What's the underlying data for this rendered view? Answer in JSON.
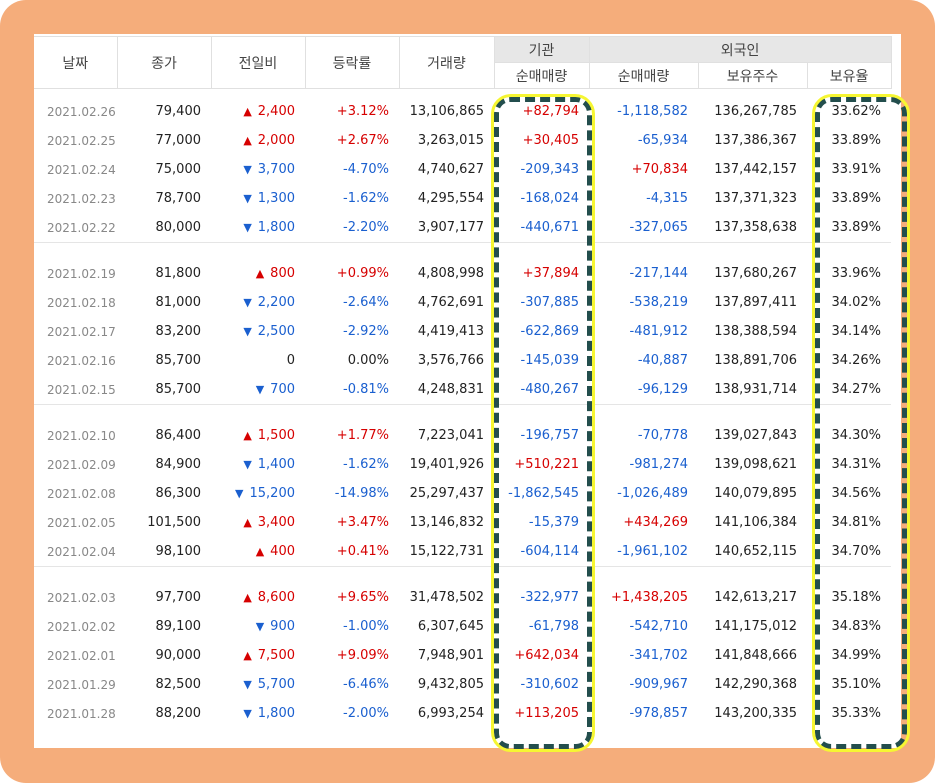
{
  "header": {
    "date": "날짜",
    "close": "종가",
    "change": "전일비",
    "rate": "등락률",
    "volume": "거래량",
    "institution": "기관",
    "foreign": "외국인",
    "inst_net": "순매매량",
    "for_net": "순매매량",
    "holdings": "보유주수",
    "hold_ratio": "보유율"
  },
  "colors": {
    "up": "#d60000",
    "down": "#1a5fcf",
    "highlight": "#f6f632",
    "highlight_dash": "#234e4d",
    "frame": "#f5ad7b"
  },
  "groups": [
    [
      {
        "date": "2021.02.26",
        "close": "79,400",
        "dir": "up",
        "change": "2,400",
        "rate": "+3.12%",
        "volume": "13,106,865",
        "inst": "+82,794",
        "foreign": "-1,118,582",
        "holdings": "136,267,785",
        "ratio": "33.62%"
      },
      {
        "date": "2021.02.25",
        "close": "77,000",
        "dir": "up",
        "change": "2,000",
        "rate": "+2.67%",
        "volume": "3,263,015",
        "inst": "+30,405",
        "foreign": "-65,934",
        "holdings": "137,386,367",
        "ratio": "33.89%"
      },
      {
        "date": "2021.02.24",
        "close": "75,000",
        "dir": "down",
        "change": "3,700",
        "rate": "-4.70%",
        "volume": "4,740,627",
        "inst": "-209,343",
        "foreign": "+70,834",
        "holdings": "137,442,157",
        "ratio": "33.91%"
      },
      {
        "date": "2021.02.23",
        "close": "78,700",
        "dir": "down",
        "change": "1,300",
        "rate": "-1.62%",
        "volume": "4,295,554",
        "inst": "-168,024",
        "foreign": "-4,315",
        "holdings": "137,371,323",
        "ratio": "33.89%"
      },
      {
        "date": "2021.02.22",
        "close": "80,000",
        "dir": "down",
        "change": "1,800",
        "rate": "-2.20%",
        "volume": "3,907,177",
        "inst": "-440,671",
        "foreign": "-327,065",
        "holdings": "137,358,638",
        "ratio": "33.89%"
      }
    ],
    [
      {
        "date": "2021.02.19",
        "close": "81,800",
        "dir": "up",
        "change": "800",
        "rate": "+0.99%",
        "volume": "4,808,998",
        "inst": "+37,894",
        "foreign": "-217,144",
        "holdings": "137,680,267",
        "ratio": "33.96%"
      },
      {
        "date": "2021.02.18",
        "close": "81,000",
        "dir": "down",
        "change": "2,200",
        "rate": "-2.64%",
        "volume": "4,762,691",
        "inst": "-307,885",
        "foreign": "-538,219",
        "holdings": "137,897,411",
        "ratio": "34.02%"
      },
      {
        "date": "2021.02.17",
        "close": "83,200",
        "dir": "down",
        "change": "2,500",
        "rate": "-2.92%",
        "volume": "4,419,413",
        "inst": "-622,869",
        "foreign": "-481,912",
        "holdings": "138,388,594",
        "ratio": "34.14%"
      },
      {
        "date": "2021.02.16",
        "close": "85,700",
        "dir": "flat",
        "change": "0",
        "rate": "0.00%",
        "volume": "3,576,766",
        "inst": "-145,039",
        "foreign": "-40,887",
        "holdings": "138,891,706",
        "ratio": "34.26%"
      },
      {
        "date": "2021.02.15",
        "close": "85,700",
        "dir": "down",
        "change": "700",
        "rate": "-0.81%",
        "volume": "4,248,831",
        "inst": "-480,267",
        "foreign": "-96,129",
        "holdings": "138,931,714",
        "ratio": "34.27%"
      }
    ],
    [
      {
        "date": "2021.02.10",
        "close": "86,400",
        "dir": "up",
        "change": "1,500",
        "rate": "+1.77%",
        "volume": "7,223,041",
        "inst": "-196,757",
        "foreign": "-70,778",
        "holdings": "139,027,843",
        "ratio": "34.30%"
      },
      {
        "date": "2021.02.09",
        "close": "84,900",
        "dir": "down",
        "change": "1,400",
        "rate": "-1.62%",
        "volume": "19,401,926",
        "inst": "+510,221",
        "foreign": "-981,274",
        "holdings": "139,098,621",
        "ratio": "34.31%"
      },
      {
        "date": "2021.02.08",
        "close": "86,300",
        "dir": "down",
        "change": "15,200",
        "rate": "-14.98%",
        "volume": "25,297,437",
        "inst": "-1,862,545",
        "foreign": "-1,026,489",
        "holdings": "140,079,895",
        "ratio": "34.56%"
      },
      {
        "date": "2021.02.05",
        "close": "101,500",
        "dir": "up",
        "change": "3,400",
        "rate": "+3.47%",
        "volume": "13,146,832",
        "inst": "-15,379",
        "foreign": "+434,269",
        "holdings": "141,106,384",
        "ratio": "34.81%"
      },
      {
        "date": "2021.02.04",
        "close": "98,100",
        "dir": "up",
        "change": "400",
        "rate": "+0.41%",
        "volume": "15,122,731",
        "inst": "-604,114",
        "foreign": "-1,961,102",
        "holdings": "140,652,115",
        "ratio": "34.70%"
      }
    ],
    [
      {
        "date": "2021.02.03",
        "close": "97,700",
        "dir": "up",
        "change": "8,600",
        "rate": "+9.65%",
        "volume": "31,478,502",
        "inst": "-322,977",
        "foreign": "+1,438,205",
        "holdings": "142,613,217",
        "ratio": "35.18%"
      },
      {
        "date": "2021.02.02",
        "close": "89,100",
        "dir": "down",
        "change": "900",
        "rate": "-1.00%",
        "volume": "6,307,645",
        "inst": "-61,798",
        "foreign": "-542,710",
        "holdings": "141,175,012",
        "ratio": "34.83%"
      },
      {
        "date": "2021.02.01",
        "close": "90,000",
        "dir": "up",
        "change": "7,500",
        "rate": "+9.09%",
        "volume": "7,948,901",
        "inst": "+642,034",
        "foreign": "-341,702",
        "holdings": "141,848,666",
        "ratio": "34.99%"
      },
      {
        "date": "2021.01.29",
        "close": "82,500",
        "dir": "down",
        "change": "5,700",
        "rate": "-6.46%",
        "volume": "9,432,805",
        "inst": "-310,602",
        "foreign": "-909,967",
        "holdings": "142,290,368",
        "ratio": "35.10%"
      },
      {
        "date": "2021.01.28",
        "close": "88,200",
        "dir": "down",
        "change": "1,800",
        "rate": "-2.00%",
        "volume": "6,993,254",
        "inst": "+113,205",
        "foreign": "-978,857",
        "holdings": "143,200,335",
        "ratio": "35.33%"
      }
    ]
  ]
}
